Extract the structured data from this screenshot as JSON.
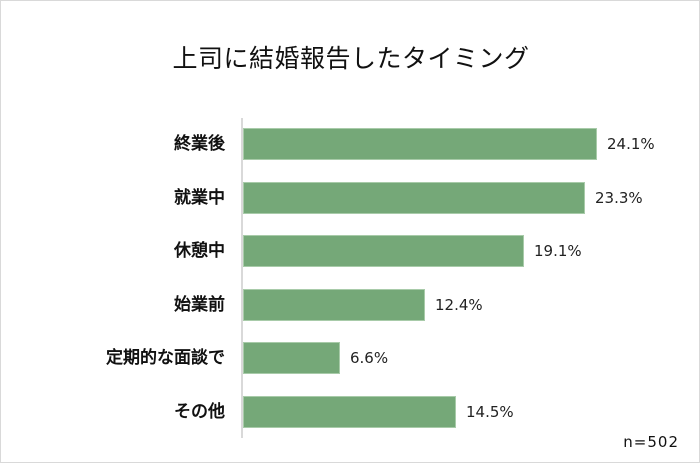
{
  "chart_data": {
    "type": "bar",
    "orientation": "horizontal",
    "title": "上司に結婚報告したタイミング",
    "categories": [
      "終業後",
      "就業中",
      "休憩中",
      "始業前",
      "定期的な面談で",
      "その他"
    ],
    "values": [
      24.1,
      23.3,
      19.1,
      12.4,
      6.6,
      14.5
    ],
    "value_labels": [
      "24.1%",
      "23.3%",
      "19.1%",
      "12.4%",
      "6.6%",
      "14.5%"
    ],
    "unit": "%",
    "xlabel": "",
    "ylabel": "",
    "grid": false,
    "legend": "none",
    "bar_color": "#75a878",
    "note": "n=502"
  }
}
